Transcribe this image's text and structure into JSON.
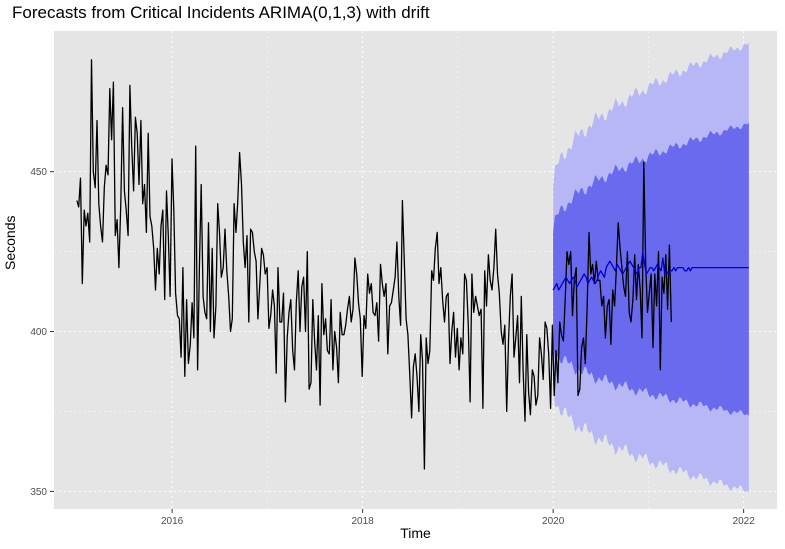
{
  "chart_data": {
    "type": "line",
    "title": "Forecasts from Critical Incidents ARIMA(0,1,3) with drift",
    "xlabel": "Time",
    "ylabel": "Seconds",
    "xlim": [
      2014.76,
      2022.35
    ],
    "ylim": [
      344.5,
      494.0
    ],
    "x_ticks": [
      2016,
      2018,
      2020,
      2022
    ],
    "y_ticks": [
      350,
      400,
      450
    ],
    "grid": true,
    "legend": "none",
    "colors": {
      "panel": "#e5e5e5",
      "grid": "#ffffff",
      "history": "#000000",
      "forecast": "#0000cc",
      "band80": "#6a6aee",
      "band95": "#b7b7f6"
    },
    "series": [
      {
        "role": "history",
        "start": 2015.0,
        "step": 0.0192,
        "values": [
          441,
          439,
          448,
          415,
          438,
          433,
          437,
          428,
          485,
          450,
          445,
          466,
          440,
          433,
          428,
          445,
          452,
          449,
          476,
          460,
          478,
          430,
          435,
          420,
          440,
          470,
          444,
          438,
          430,
          477,
          458,
          444,
          467,
          462,
          446,
          466,
          440,
          446,
          431,
          462,
          436,
          433,
          426,
          413,
          426,
          418,
          433,
          438,
          410,
          444,
          430,
          411,
          454,
          438,
          412,
          405,
          404,
          392,
          420,
          386,
          410,
          390,
          396,
          409,
          398,
          458,
          388,
          420,
          446,
          411,
          406,
          404,
          434,
          400,
          426,
          398,
          408,
          440,
          431,
          417,
          420,
          432,
          419,
          411,
          400,
          404,
          440,
          431,
          441,
          456,
          446,
          428,
          420,
          430,
          403,
          432,
          431,
          425,
          422,
          404,
          415,
          426,
          424,
          418,
          420,
          401,
          405,
          413,
          408,
          387,
          420,
          403,
          403,
          412,
          378,
          398,
          406,
          410,
          394,
          388,
          409,
          419,
          400,
          414,
          417,
          400,
          425,
          382,
          384,
          410,
          397,
          388,
          405,
          377,
          415,
          399,
          404,
          394,
          393,
          410,
          388,
          400,
          395,
          384,
          406,
          399,
          399,
          402,
          407,
          411,
          403,
          407,
          423,
          418,
          409,
          404,
          386,
          405,
          401,
          418,
          412,
          415,
          406,
          405,
          409,
          397,
          421,
          415,
          411,
          415,
          393,
          408,
          409,
          413,
          417,
          428,
          411,
          402,
          441,
          423,
          404,
          399,
          387,
          373,
          389,
          393,
          386,
          375,
          399,
          391,
          357,
          398,
          390,
          394,
          419,
          416,
          426,
          431,
          415,
          420,
          410,
          403,
          411,
          412,
          390,
          400,
          406,
          392,
          401,
          388,
          398,
          393,
          418,
          416,
          402,
          378,
          418,
          406,
          411,
          408,
          405,
          407,
          376,
          419,
          408,
          424,
          416,
          413,
          420,
          432,
          418,
          412,
          400,
          396,
          402,
          375,
          397,
          411,
          418,
          392,
          398,
          405,
          384,
          411,
          388,
          372,
          399,
          381,
          374,
          388,
          386,
          377,
          380,
          398,
          393,
          385,
          403,
          401,
          393,
          376,
          402,
          380,
          394,
          384,
          403,
          399,
          397,
          410,
          425,
          421,
          425,
          405,
          416,
          420,
          380,
          382,
          395,
          398,
          390,
          407,
          431,
          418,
          421,
          415,
          422,
          416,
          416,
          408,
          411,
          398,
          408,
          410,
          396,
          413,
          408,
          420,
          434,
          426,
          420,
          414,
          411,
          425,
          406,
          403,
          410,
          424,
          410,
          421,
          413,
          398,
          453,
          421,
          406,
          412,
          418,
          395,
          418,
          408,
          425,
          388,
          417,
          412,
          424,
          407,
          427,
          403
        ]
      },
      {
        "role": "forecast",
        "start": 2020.0,
        "step": 0.0192,
        "values": [
          413,
          414,
          415,
          413,
          414,
          415,
          416,
          417,
          416,
          415,
          416,
          417,
          416,
          414,
          415,
          416,
          417,
          418,
          417,
          415,
          416,
          417,
          416,
          415,
          416,
          418,
          419,
          418,
          417,
          420,
          421,
          422,
          421,
          420,
          419,
          421,
          420,
          419,
          418,
          419,
          420,
          421,
          422,
          421,
          420,
          419,
          418,
          420,
          420,
          425,
          421,
          418,
          419,
          420,
          420,
          419,
          420,
          421,
          420,
          419,
          423,
          418,
          419,
          418,
          419,
          419,
          420,
          419,
          420,
          420,
          420,
          420,
          419,
          419,
          420,
          419,
          420,
          420,
          420,
          420,
          420,
          420,
          420,
          420,
          420,
          420,
          420,
          420,
          420,
          420,
          420,
          420,
          420,
          420,
          420,
          420,
          420,
          420,
          420,
          420,
          420,
          420,
          420,
          420,
          420,
          420,
          420,
          420
        ]
      }
    ],
    "band80": {
      "upper_start": 431,
      "upper_end": 465,
      "lower_start": 396,
      "lower_end": 374
    },
    "band95": {
      "upper_start": 445,
      "upper_end": 490,
      "lower_start": 382,
      "lower_end": 350
    }
  }
}
